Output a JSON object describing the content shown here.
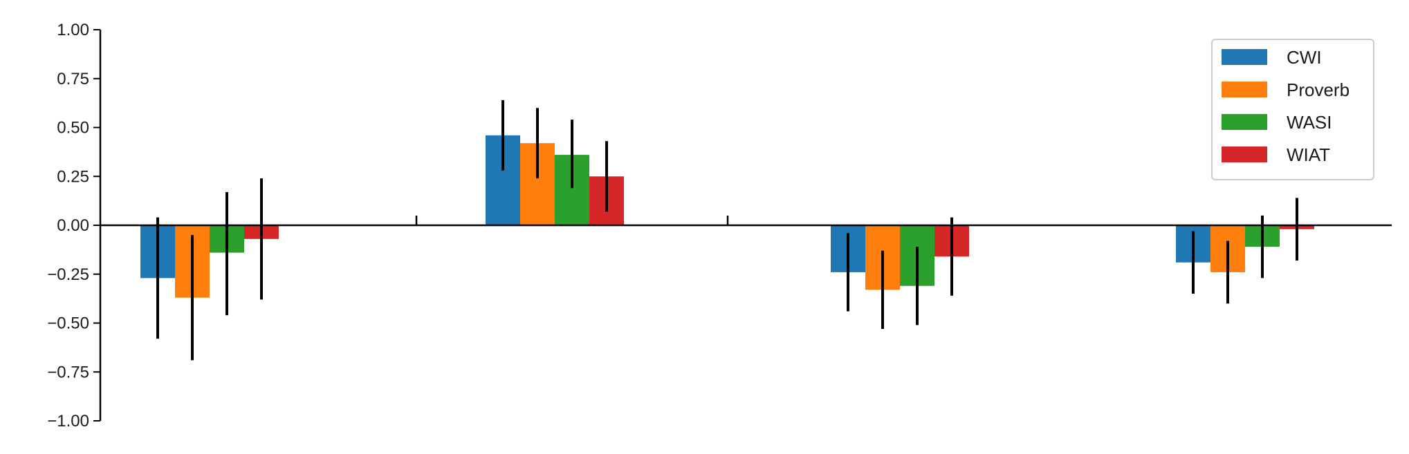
{
  "chart_data": {
    "type": "bar",
    "categories": [
      "",
      "",
      "",
      ""
    ],
    "ylim": [
      -1.0,
      1.0
    ],
    "yticks": [
      1.0,
      0.75,
      0.5,
      0.25,
      0.0,
      -0.25,
      -0.5,
      -0.75,
      -1.0
    ],
    "ytick_labels": [
      "1.00",
      "0.75",
      "0.50",
      "0.25",
      "0.00",
      "−0.25",
      "−0.50",
      "−0.75",
      "−1.00"
    ],
    "grid": false,
    "legend_position": "top-right",
    "series": [
      {
        "name": "CWI",
        "color": "#1f77b4",
        "values": [
          -0.27,
          0.46,
          -0.24,
          -0.19
        ],
        "err_low": [
          -0.58,
          0.28,
          -0.44,
          -0.35
        ],
        "err_high": [
          0.04,
          0.64,
          -0.04,
          -0.03
        ]
      },
      {
        "name": "Proverb",
        "color": "#ff7f0e",
        "values": [
          -0.37,
          0.42,
          -0.33,
          -0.24
        ],
        "err_low": [
          -0.69,
          0.24,
          -0.53,
          -0.4
        ],
        "err_high": [
          -0.05,
          0.6,
          -0.13,
          -0.08
        ]
      },
      {
        "name": "WASI",
        "color": "#2ca02c",
        "values": [
          -0.14,
          0.36,
          -0.31,
          -0.11
        ],
        "err_low": [
          -0.46,
          0.19,
          -0.51,
          -0.27
        ],
        "err_high": [
          0.17,
          0.54,
          -0.11,
          0.05
        ]
      },
      {
        "name": "WIAT",
        "color": "#d62728",
        "values": [
          -0.07,
          0.25,
          -0.16,
          -0.02
        ],
        "err_low": [
          -0.38,
          0.07,
          -0.36,
          -0.18
        ],
        "err_high": [
          0.24,
          0.43,
          0.04,
          0.14
        ]
      }
    ]
  }
}
